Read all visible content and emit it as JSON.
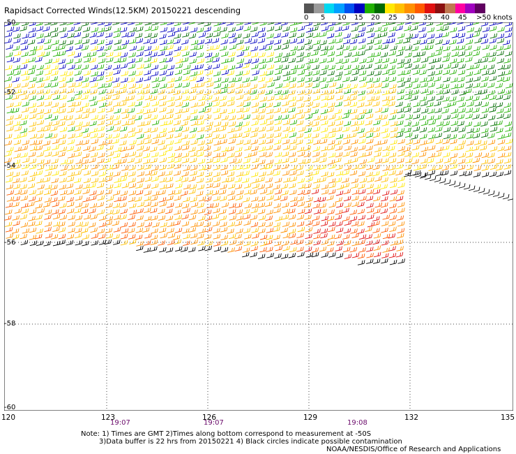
{
  "title": "Rapidsact Corrected Winds(12.5KM) 20150221 descending",
  "legend": {
    "colors": [
      "#555555",
      "#9a9a9a",
      "#00d8f0",
      "#00a0ff",
      "#0050f0",
      "#0000c0",
      "#20b000",
      "#006a00",
      "#ffe800",
      "#ffc000",
      "#ff9000",
      "#ff5a00",
      "#e01010",
      "#8a1010",
      "#c07850",
      "#ff00a0",
      "#a000c0",
      "#600060"
    ],
    "labels": [
      "0",
      "5",
      "10",
      "15",
      "20",
      "25",
      "30",
      "35",
      "40",
      "45",
      ">50 knots"
    ]
  },
  "map": {
    "lon_range": [
      120,
      135
    ],
    "lat_range": [
      -60,
      -50
    ],
    "lat_labels": [
      "-50",
      "-52",
      "-54",
      "-56",
      "-58",
      "-60"
    ],
    "lon_labels": [
      "120",
      "123",
      "126",
      "129",
      "132",
      "135"
    ],
    "time_labels": [
      "19:07",
      "19:07",
      "19:08"
    ]
  },
  "notes": {
    "line1": "Note: 1) Times are GMT 2)Times along bottom correspond to measurement at -50S",
    "line2": "3)Data buffer is 22 hrs from 20150221 4) Black circles indicate possible contamination",
    "credit": "NOAA/NESDIS/Office of Research and Applications"
  }
}
